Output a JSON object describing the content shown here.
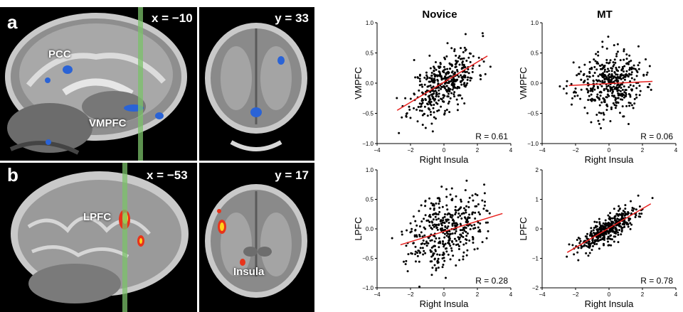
{
  "figure": {
    "panel_a": {
      "letter": "a",
      "sagittal_coord": "x = −10",
      "coronal_coord": "y = 33",
      "labels": {
        "pcc": "PCC",
        "vmpfc": "VMPFC"
      }
    },
    "panel_b": {
      "letter": "b",
      "sagittal_coord": "x = −53",
      "coronal_coord": "y = 17",
      "labels": {
        "lpfc": "LPFC",
        "insula": "Insula"
      }
    },
    "column_titles": {
      "left": "Novice",
      "right": "MT"
    }
  },
  "colors": {
    "points": "#000000",
    "fit_line": "#e8211e",
    "blue_cluster": "#2a63d6",
    "red_cluster": "#e8331a",
    "yellow_cluster": "#ffd21a",
    "cursor_line": "#7bc26a"
  },
  "chart_data": [
    {
      "id": "novice-vmpfc",
      "type": "scatter",
      "title": "Novice",
      "xlabel": "Right Insula",
      "ylabel": "VMPFC",
      "xlim": [
        -4,
        4
      ],
      "ylim": [
        -1.0,
        1.0
      ],
      "xticks": [
        -4,
        -2,
        0,
        2,
        4
      ],
      "yticks": [
        -1.0,
        -0.5,
        0.0,
        0.5,
        1.0
      ],
      "ytick_labels": [
        "−1.0",
        "−0.5",
        "0.0",
        "0.5",
        "1.0"
      ],
      "fit": {
        "x": [
          -2.8,
          2.6
        ],
        "y": [
          -0.45,
          0.45
        ]
      },
      "annotation": "R = 0.61",
      "cloud": {
        "n": 420,
        "x_mean": 0.0,
        "x_sd": 1.0,
        "slope": 0.16,
        "intercept": 0.0,
        "resid_sd": 0.23,
        "seed": 11
      }
    },
    {
      "id": "mt-vmpfc",
      "type": "scatter",
      "title": "MT",
      "xlabel": "Right Insula",
      "ylabel": "VMPFC",
      "xlim": [
        -4,
        4
      ],
      "ylim": [
        -1.0,
        1.0
      ],
      "xticks": [
        -4,
        -2,
        0,
        2,
        4
      ],
      "yticks": [
        -1.0,
        -0.5,
        0.0,
        0.5,
        1.0
      ],
      "ytick_labels": [
        "−1.0",
        "−0.5",
        "0.0",
        "0.5",
        "1.0"
      ],
      "fit": {
        "x": [
          -2.4,
          2.6
        ],
        "y": [
          -0.04,
          0.03
        ]
      },
      "annotation": "R = 0.06",
      "cloud": {
        "n": 420,
        "x_mean": 0.0,
        "x_sd": 1.0,
        "slope": 0.01,
        "intercept": 0.0,
        "resid_sd": 0.25,
        "seed": 23
      }
    },
    {
      "id": "novice-lpfc",
      "type": "scatter",
      "title": "",
      "xlabel": "Right Insula",
      "ylabel": "LPFC",
      "xlim": [
        -4,
        4
      ],
      "ylim": [
        -1.0,
        1.0
      ],
      "xticks": [
        -4,
        -2,
        0,
        2,
        4
      ],
      "yticks": [
        -1.0,
        -0.5,
        0.0,
        0.5,
        1.0
      ],
      "ytick_labels": [
        "−1.0",
        "−0.5",
        "0.0",
        "0.5",
        "1.0"
      ],
      "fit": {
        "x": [
          -2.6,
          3.5
        ],
        "y": [
          -0.27,
          0.26
        ]
      },
      "annotation": "R = 0.28",
      "cloud": {
        "n": 420,
        "x_mean": 0.1,
        "x_sd": 1.1,
        "slope": 0.09,
        "intercept": 0.0,
        "resid_sd": 0.3,
        "seed": 37
      }
    },
    {
      "id": "mt-lpfc",
      "type": "scatter",
      "title": "",
      "xlabel": "Right Insula",
      "ylabel": "LPFC",
      "xlim": [
        -4,
        4
      ],
      "ylim": [
        -2,
        2
      ],
      "xticks": [
        -4,
        -2,
        0,
        2,
        4
      ],
      "yticks": [
        -2,
        -1,
        0,
        1,
        2
      ],
      "ytick_labels": [
        "−2",
        "−1",
        "0",
        "1",
        "2"
      ],
      "fit": {
        "x": [
          -2.5,
          2.5
        ],
        "y": [
          -0.8,
          0.85
        ]
      },
      "annotation": "R = 0.78",
      "cloud": {
        "n": 420,
        "x_mean": 0.0,
        "x_sd": 0.95,
        "slope": 0.33,
        "intercept": 0.0,
        "resid_sd": 0.21,
        "seed": 53
      }
    }
  ]
}
